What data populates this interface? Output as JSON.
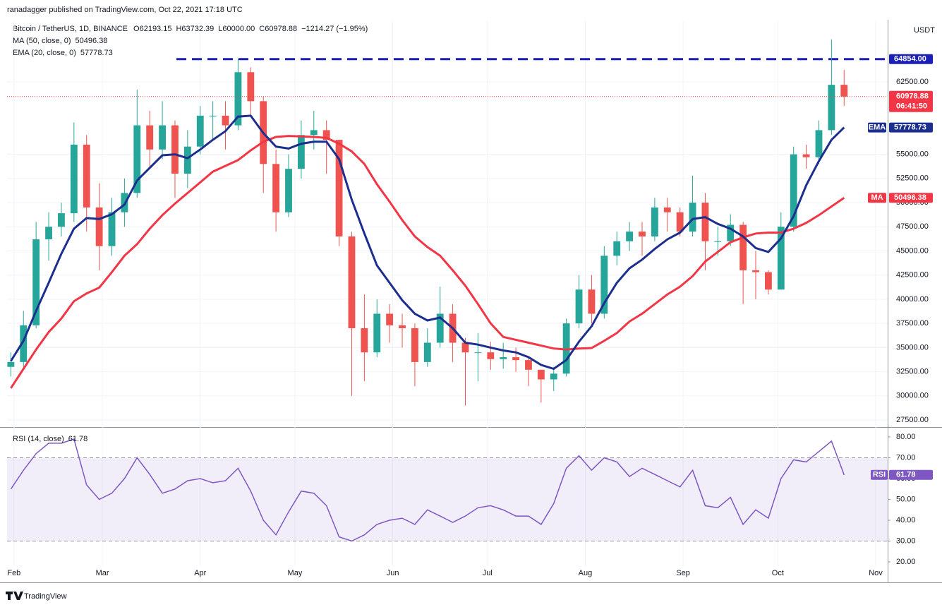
{
  "header": {
    "publisher": "ranadagger published on TradingView.com, Oct 22, 2021 17:18 UTC",
    "brand": "TradingView"
  },
  "chart_data": {
    "type": "candlestick",
    "symbol": "Bitcoin / TetherUS, 1D, BINANCE",
    "ohlc_text": [
      "O62193.15",
      "H63732.39",
      "L60000.00",
      "C60978.88",
      "−1214.27 (−1.95%)"
    ],
    "currency": "USDT",
    "up_color": "#26a69a",
    "down_color": "#ef5350",
    "open": [
      33000,
      33500,
      37300,
      46200,
      47500,
      48900,
      56000,
      49500,
      45500,
      49000,
      51000,
      58000,
      55500,
      58000,
      53000,
      55800,
      59000,
      59000,
      58000,
      63500,
      60500,
      54000,
      49000,
      53500,
      57000,
      57500,
      56500,
      46500,
      37000,
      34500,
      38500,
      37300,
      37000,
      33500,
      35500,
      38500,
      35500,
      34500,
      34500,
      33800,
      34000,
      33700,
      32700,
      31700,
      32300,
      37500,
      41000,
      38500,
      44500,
      46000,
      47000,
      46500,
      49500,
      49000,
      47000,
      50000,
      46000,
      46000,
      47700,
      43000,
      42800,
      41000,
      47500,
      55000,
      54700,
      57500,
      62193.15
    ],
    "high": [
      34500,
      38800,
      48000,
      49000,
      50000,
      58300,
      57000,
      52000,
      50500,
      52500,
      61700,
      59500,
      60500,
      58500,
      57500,
      60000,
      60500,
      60500,
      64854,
      64000,
      61000,
      55500,
      55000,
      58500,
      59500,
      58500,
      56500,
      47000,
      40500,
      40000,
      39500,
      38500,
      37500,
      37000,
      41300,
      39500,
      36000,
      36500,
      35600,
      35500,
      35000,
      34000,
      32700,
      33000,
      38000,
      42500,
      42500,
      45500,
      47000,
      48000,
      48000,
      50500,
      50500,
      49500,
      52800,
      51000,
      47500,
      48800,
      48000,
      45000,
      43000,
      49000,
      55800,
      56000,
      58500,
      66900,
      63732.39
    ],
    "low": [
      32000,
      33000,
      37000,
      44000,
      46500,
      48000,
      47000,
      43000,
      44500,
      47500,
      50500,
      53500,
      54500,
      50500,
      51500,
      55000,
      56500,
      55500,
      57500,
      59000,
      51000,
      47000,
      48500,
      52500,
      55500,
      53000,
      45500,
      30000,
      31500,
      34000,
      35500,
      35000,
      31000,
      33000,
      35000,
      33500,
      29000,
      31500,
      32700,
      32800,
      32500,
      31000,
      29300,
      30500,
      32000,
      37000,
      37500,
      38000,
      43500,
      45000,
      44500,
      46000,
      47000,
      46500,
      46500,
      43000,
      44500,
      45500,
      39500,
      40000,
      40500,
      41000,
      47000,
      53500,
      54000,
      57000,
      60000
    ],
    "close": [
      33500,
      37300,
      46200,
      47500,
      48900,
      56000,
      49500,
      45500,
      49000,
      51000,
      58000,
      55500,
      58000,
      53000,
      55800,
      59000,
      59000,
      58000,
      63500,
      60500,
      54000,
      49000,
      53500,
      57000,
      57500,
      56500,
      46500,
      37000,
      34500,
      38500,
      37300,
      37000,
      33500,
      35500,
      38500,
      35500,
      34500,
      34500,
      33800,
      34000,
      33700,
      32700,
      31700,
      32300,
      37500,
      41000,
      38500,
      44500,
      46000,
      47000,
      46500,
      49500,
      49000,
      47000,
      50000,
      46000,
      46000,
      47700,
      43000,
      42800,
      41000,
      47500,
      55000,
      54700,
      57500,
      62193.15,
      60978.88
    ],
    "overlays": [
      {
        "name": "MA (50, close, 0)",
        "badge": "MA",
        "value": "50496.38",
        "color": "#f23645",
        "values": [
          30800,
          32800,
          34800,
          36600,
          38000,
          39800,
          40600,
          41200,
          42800,
          44500,
          45700,
          47300,
          48700,
          49900,
          51000,
          52100,
          53200,
          53800,
          54400,
          55400,
          56300,
          56800,
          56900,
          56850,
          56800,
          56700,
          56100,
          55300,
          54000,
          51900,
          50100,
          48200,
          46500,
          45400,
          44500,
          43000,
          41400,
          39500,
          37500,
          36100,
          35800,
          35500,
          35200,
          34900,
          34800,
          34900,
          34950,
          35700,
          36500,
          37700,
          38500,
          39500,
          40500,
          41300,
          42400,
          43900,
          44900,
          45900,
          46400,
          46800,
          46900,
          46900,
          47300,
          47900,
          48700,
          49600,
          50496.38
        ]
      },
      {
        "name": "EMA (20, close, 0)",
        "badge": "EMA",
        "value": "57778.73",
        "color": "#1c2f8f",
        "values": [
          33600,
          35700,
          38800,
          41700,
          44700,
          47300,
          48400,
          48300,
          48800,
          49800,
          52300,
          53600,
          54900,
          55000,
          54600,
          55500,
          56500,
          57400,
          58900,
          59000,
          57200,
          55800,
          55600,
          56100,
          56300,
          56300,
          54500,
          50300,
          46800,
          43500,
          41700,
          39900,
          38500,
          37800,
          38100,
          37000,
          35500,
          35300,
          35000,
          34700,
          34500,
          34000,
          33200,
          32800,
          33700,
          35600,
          37200,
          39600,
          41700,
          43200,
          44100,
          45200,
          46200,
          46900,
          48300,
          48500,
          47800,
          47300,
          46500,
          45300,
          44900,
          46300,
          48600,
          51800,
          54300,
          56500,
          57778.73
        ]
      }
    ],
    "hline": {
      "value": 64854,
      "label": "64854.00",
      "color": "#1a1fb5"
    },
    "last_price": {
      "label": "60978.88",
      "countdown": "06:41:50",
      "color": "#f23645"
    },
    "ylim": [
      26770,
      68780
    ],
    "yticks": [
      {
        "value": 27500,
        "label": "27500.00"
      },
      {
        "value": 30000,
        "label": "30000.00"
      },
      {
        "value": 32500,
        "label": "32500.00"
      },
      {
        "value": 35000,
        "label": "35000.00"
      },
      {
        "value": 37500,
        "label": "37500.00"
      },
      {
        "value": 40000,
        "label": "40000.00"
      },
      {
        "value": 42500,
        "label": "42500.00"
      },
      {
        "value": 45000,
        "label": "45000.00"
      },
      {
        "value": 47500,
        "label": "47500.00"
      },
      {
        "value": 50000,
        "label": "50000.00"
      },
      {
        "value": 52500,
        "label": "52500.00"
      },
      {
        "value": 55000,
        "label": "55000.00"
      },
      {
        "value": 62500,
        "label": "62500.00"
      }
    ],
    "xlim": [
      -0.3,
      69.45
    ],
    "xticks": [
      {
        "value": 0.25,
        "label": "Feb"
      },
      {
        "value": 7.25,
        "label": "Mar"
      },
      {
        "value": 15,
        "label": "Apr"
      },
      {
        "value": 22.5,
        "label": "May"
      },
      {
        "value": 30.25,
        "label": "Jun"
      },
      {
        "value": 37.75,
        "label": "Jul"
      },
      {
        "value": 45.5,
        "label": "Aug"
      },
      {
        "value": 53.25,
        "label": "Sep"
      },
      {
        "value": 60.75,
        "label": "Oct"
      },
      {
        "value": 68.5,
        "label": "Nov"
      }
    ],
    "rsi": {
      "name": "RSI (14, close)",
      "badge": "RSI",
      "value": "61.78",
      "color": "#7e57c2",
      "band": [
        30,
        70
      ],
      "values": [
        55,
        64,
        72,
        77,
        77,
        79,
        57,
        50,
        53,
        60,
        70,
        62,
        53,
        55,
        59,
        60,
        58,
        59,
        65,
        54,
        40,
        33,
        44,
        54,
        53,
        47,
        32,
        30,
        33,
        38,
        40,
        41,
        38,
        45,
        42,
        39,
        42,
        46,
        47,
        45,
        42,
        42,
        38,
        48,
        65,
        71,
        64,
        70,
        68,
        61,
        65,
        62,
        59,
        56,
        64,
        47,
        46,
        51,
        38,
        45,
        41,
        60,
        69,
        68,
        73,
        78,
        61.78
      ],
      "ylim": [
        17.97,
        83.73
      ],
      "yticks": [
        {
          "value": 20,
          "label": "20.00"
        },
        {
          "value": 30,
          "label": "30.00"
        },
        {
          "value": 40,
          "label": "40.00"
        },
        {
          "value": 50,
          "label": "50.00"
        },
        {
          "value": 60,
          "label": "60.00"
        },
        {
          "value": 70,
          "label": "70.00"
        },
        {
          "value": 80,
          "label": "80.00"
        }
      ]
    }
  }
}
